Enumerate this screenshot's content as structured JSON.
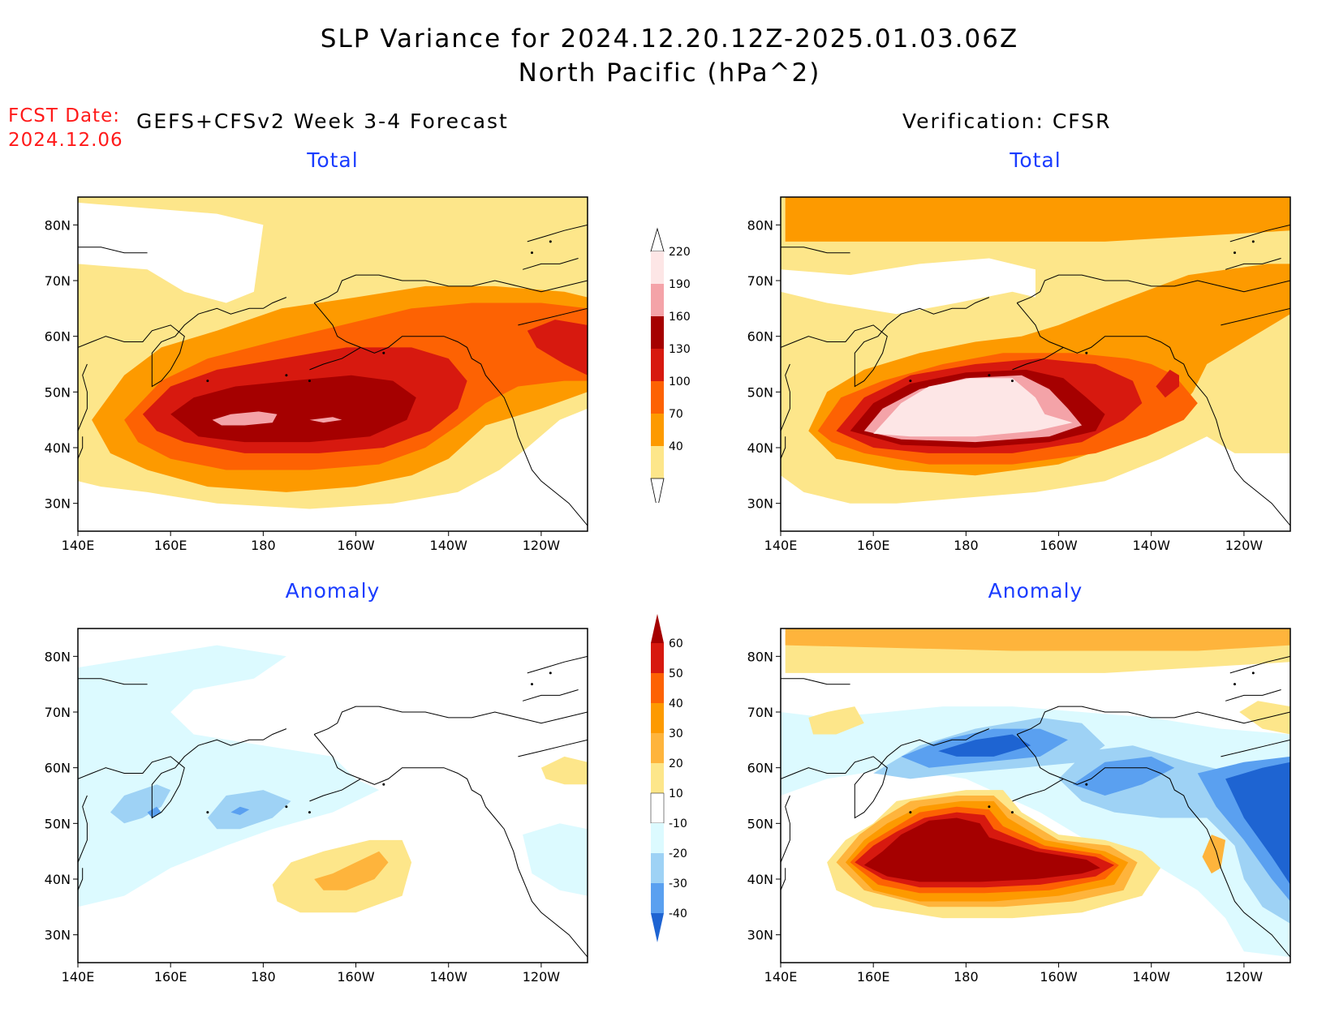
{
  "title": {
    "line1": "SLP Variance for 2024.12.20.12Z-2025.01.03.06Z",
    "line2": "North Pacific (hPa^2)"
  },
  "fcst_date": {
    "label": "FCST Date:",
    "value": "2024.12.06"
  },
  "headers": {
    "forecast": "GEFS+CFSv2 Week 3-4 Forecast",
    "verification": "Verification: CFSR"
  },
  "panels": {
    "fcst_total": {
      "title": "Total"
    },
    "obs_total": {
      "title": "Total"
    },
    "fcst_anom": {
      "title": "Anomaly"
    },
    "obs_anom": {
      "title": "Anomaly"
    }
  },
  "map": {
    "lat_ticks": [
      "80N",
      "70N",
      "60N",
      "50N",
      "40N",
      "30N"
    ],
    "lon_ticks": [
      "140E",
      "160E",
      "180",
      "160W",
      "140W",
      "120W"
    ],
    "lat_range": [
      25,
      85
    ],
    "lon_range": [
      140,
      250
    ]
  },
  "colorbar_total": {
    "levels": [
      "220",
      "190",
      "160",
      "130",
      "100",
      "70",
      "40"
    ],
    "colors": [
      "#fde6e6",
      "#f4a3a8",
      "#a50000",
      "#d7190f",
      "#fd6203",
      "#fd9a00",
      "#fde68a"
    ]
  },
  "colorbar_anom": {
    "levels": [
      "60",
      "50",
      "40",
      "30",
      "20",
      "10",
      "-10",
      "-20",
      "-30",
      "-40"
    ],
    "colors": [
      "#a50000",
      "#d7190f",
      "#fd6203",
      "#fd9a00",
      "#feb43c",
      "#fde68a",
      "#ffffff",
      "#dcfaff",
      "#9ed2f5",
      "#5aa0f0",
      "#1e64d2"
    ]
  },
  "colors": {
    "text_blue": "#1a3cff",
    "fcst_red": "#ff1a1a"
  }
}
